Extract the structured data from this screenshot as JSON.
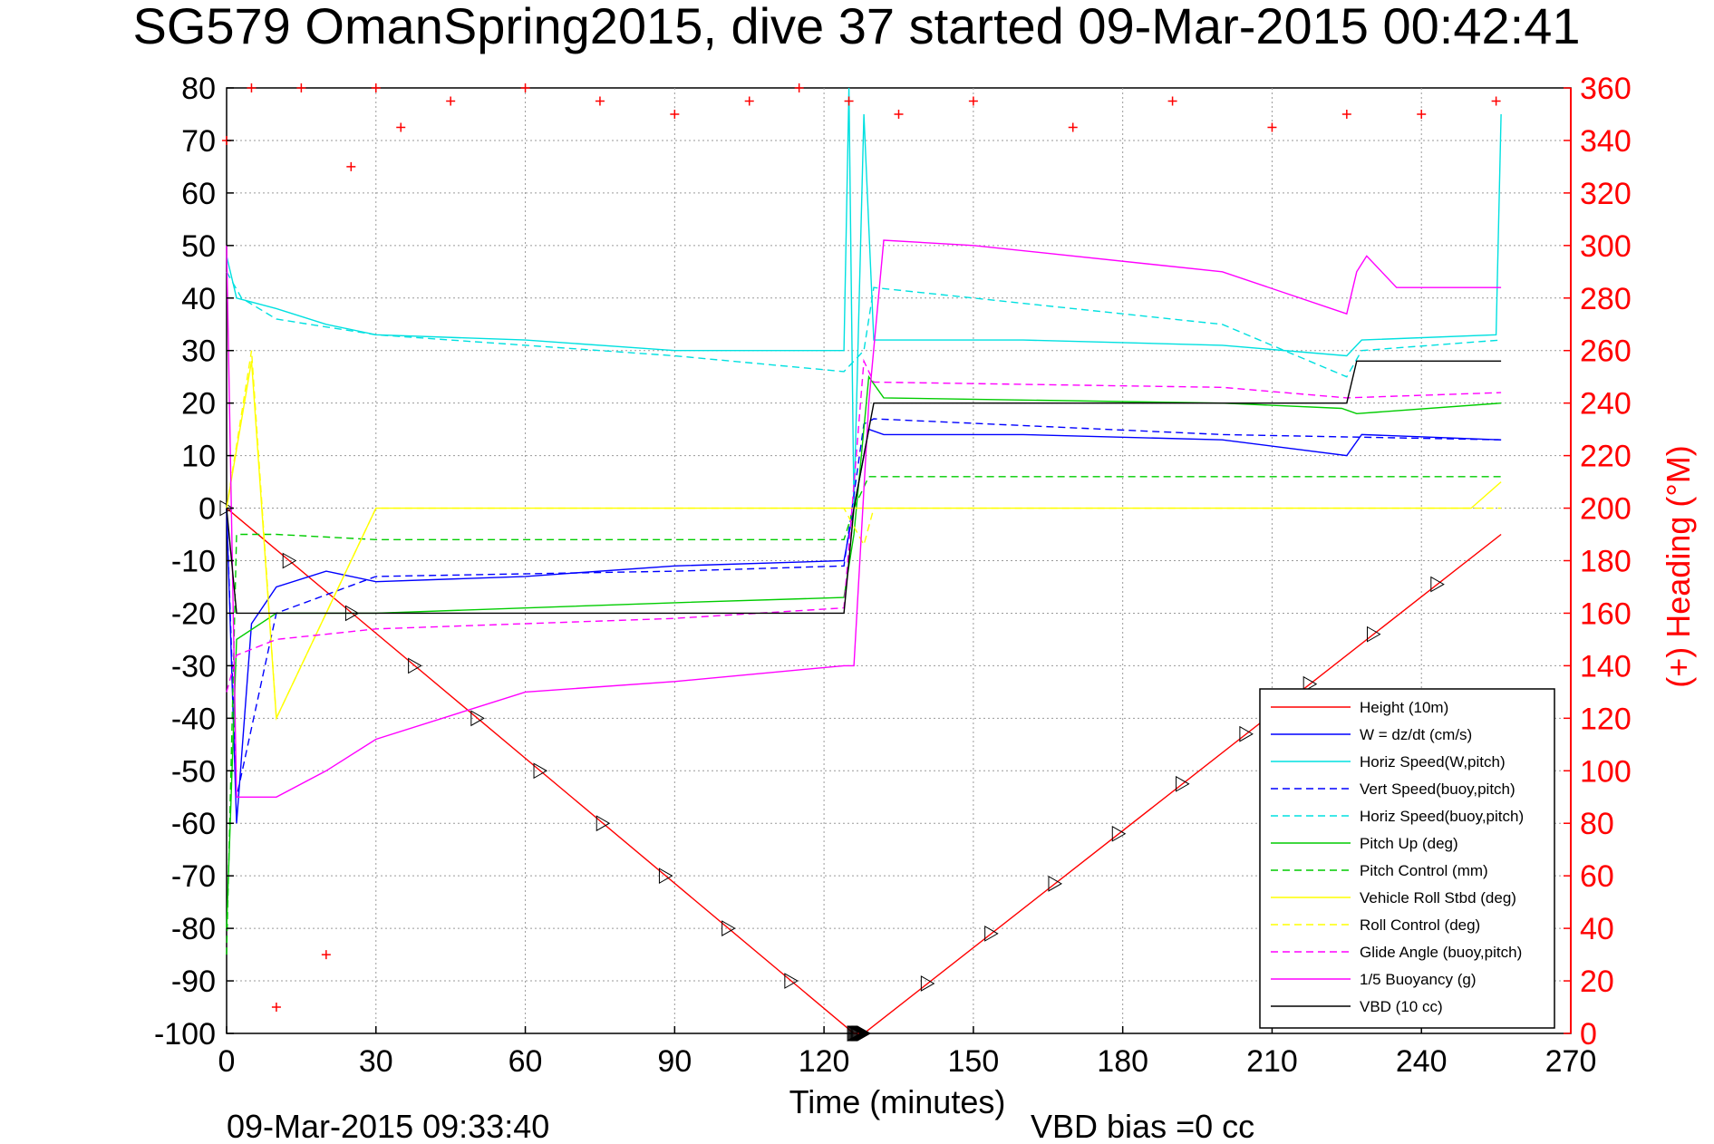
{
  "chart_data": {
    "type": "line",
    "title": "SG579 OmanSpring2015, dive 37 started 09-Mar-2015 00:42:41",
    "xlabel": "Time (minutes)",
    "ylabel_right": "(+) Heading (°M)",
    "xlim": [
      0,
      270
    ],
    "ylim": [
      -100,
      80
    ],
    "ylim_right": [
      0,
      360
    ],
    "grid": true,
    "x_ticks": [
      "0",
      "30",
      "60",
      "90",
      "120",
      "150",
      "180",
      "210",
      "240",
      "270"
    ],
    "y_ticks_left": [
      "80",
      "70",
      "60",
      "50",
      "40",
      "30",
      "20",
      "10",
      "0",
      "-10",
      "-20",
      "-30",
      "-40",
      "-50",
      "-60",
      "-70",
      "-80",
      "-90",
      "-100"
    ],
    "y_ticks_right": [
      "360",
      "340",
      "320",
      "300",
      "280",
      "260",
      "240",
      "220",
      "200",
      "180",
      "160",
      "140",
      "120",
      "100",
      "80",
      "60",
      "40",
      "20",
      "0"
    ],
    "footer_left": "09-Mar-2015 09:33:40",
    "footer_center": "VBD bias =0 cc",
    "legend_position": "lower-right",
    "series": [
      {
        "name": "Height (10m)",
        "color": "#ff0000",
        "style": "solid",
        "x": [
          0,
          126,
          128,
          256
        ],
        "y": [
          0,
          -100,
          -100,
          -5
        ]
      },
      {
        "name": "W = dz/dt (cm/s)",
        "color": "#0000ff",
        "style": "solid",
        "x": [
          0,
          2,
          5,
          10,
          20,
          30,
          60,
          90,
          124,
          126,
          129,
          132,
          160,
          200,
          225,
          228,
          256
        ],
        "y": [
          0,
          -60,
          -22,
          -15,
          -12,
          -14,
          -13,
          -11,
          -10,
          0,
          15,
          14,
          14,
          13,
          10,
          14,
          13
        ]
      },
      {
        "name": "Horiz Speed(W,pitch)",
        "color": "#00e0e0",
        "style": "solid",
        "x": [
          0,
          2,
          10,
          20,
          30,
          60,
          90,
          124,
          125,
          126,
          128,
          130,
          160,
          200,
          225,
          228,
          255,
          256
        ],
        "y": [
          48,
          40,
          38,
          35,
          33,
          32,
          30,
          30,
          80,
          0,
          75,
          32,
          32,
          31,
          29,
          32,
          33,
          75
        ]
      },
      {
        "name": "Vert Speed(buoy,pitch)",
        "color": "#0000ff",
        "style": "dashed",
        "x": [
          0,
          2,
          10,
          30,
          90,
          124,
          128,
          130,
          200,
          256
        ],
        "y": [
          0,
          -55,
          -20,
          -13,
          -12,
          -11,
          16,
          17,
          14,
          13
        ]
      },
      {
        "name": "Horiz Speed(buoy,pitch)",
        "color": "#00e0e0",
        "style": "dashed",
        "x": [
          0,
          3,
          10,
          30,
          90,
          124,
          128,
          130,
          200,
          225,
          228,
          256
        ],
        "y": [
          45,
          40,
          36,
          33,
          29,
          26,
          30,
          42,
          35,
          25,
          30,
          32
        ]
      },
      {
        "name": "Pitch Up (deg)",
        "color": "#00cc00",
        "style": "solid",
        "x": [
          0,
          2,
          10,
          30,
          90,
          124,
          126,
          129,
          132,
          200,
          224,
          227,
          256
        ],
        "y": [
          -80,
          -25,
          -20,
          -20,
          -18,
          -17,
          -5,
          25,
          21,
          20,
          19,
          18,
          20
        ]
      },
      {
        "name": "Pitch Control (mm)",
        "color": "#00cc00",
        "style": "dashed",
        "x": [
          0,
          2,
          10,
          30,
          124,
          126,
          129,
          256
        ],
        "y": [
          -85,
          -5,
          -5,
          -6,
          -6,
          0,
          6,
          6
        ]
      },
      {
        "name": "Vehicle Roll Stbd (deg)",
        "color": "#ffff00",
        "style": "solid",
        "x": [
          0,
          5,
          10,
          30,
          60,
          90,
          124,
          130,
          200,
          250,
          256
        ],
        "y": [
          0,
          28,
          -40,
          0,
          0,
          0,
          0,
          0,
          0,
          0,
          5
        ]
      },
      {
        "name": "Roll Control (deg)",
        "color": "#ffff00",
        "style": "dashed",
        "x": [
          0,
          5,
          10,
          30,
          60,
          124,
          128,
          130,
          200,
          256
        ],
        "y": [
          0,
          30,
          -40,
          0,
          0,
          0,
          -7,
          0,
          0,
          0
        ]
      },
      {
        "name": "Glide Angle (buoy,pitch)",
        "color": "#ff00ff",
        "style": "dashed",
        "x": [
          0,
          2,
          10,
          30,
          90,
          124,
          128,
          130,
          200,
          225,
          256
        ],
        "y": [
          -35,
          -28,
          -25,
          -23,
          -21,
          -19,
          28,
          24,
          23,
          21,
          22
        ]
      },
      {
        "name": "1/5 Buoyancy (g)",
        "color": "#ff00ff",
        "style": "solid",
        "x": [
          0,
          2,
          10,
          20,
          30,
          60,
          90,
          124,
          126,
          129,
          132,
          150,
          200,
          225,
          227,
          229,
          235,
          256
        ],
        "y": [
          50,
          -55,
          -55,
          -50,
          -44,
          -35,
          -33,
          -30,
          -30,
          20,
          51,
          50,
          45,
          37,
          45,
          48,
          42,
          42
        ]
      },
      {
        "name": "VBD (10 cc)",
        "color": "#000000",
        "style": "solid",
        "x": [
          0,
          2,
          124,
          126,
          130,
          200,
          225,
          227,
          256
        ],
        "y": [
          0,
          -20,
          -20,
          0,
          20,
          20,
          20,
          28,
          28
        ]
      },
      {
        "name": "Heading",
        "color": "#ff0000",
        "style": "plus",
        "axis": "right",
        "x": [
          0,
          5,
          10,
          15,
          20,
          25,
          30,
          35,
          45,
          60,
          75,
          90,
          105,
          115,
          125,
          135,
          150,
          170,
          190,
          210,
          225,
          240,
          255
        ],
        "y": [
          340,
          360,
          10,
          360,
          30,
          330,
          360,
          345,
          355,
          360,
          355,
          350,
          355,
          360,
          355,
          350,
          355,
          345,
          355,
          345,
          350,
          350,
          355
        ]
      }
    ]
  }
}
